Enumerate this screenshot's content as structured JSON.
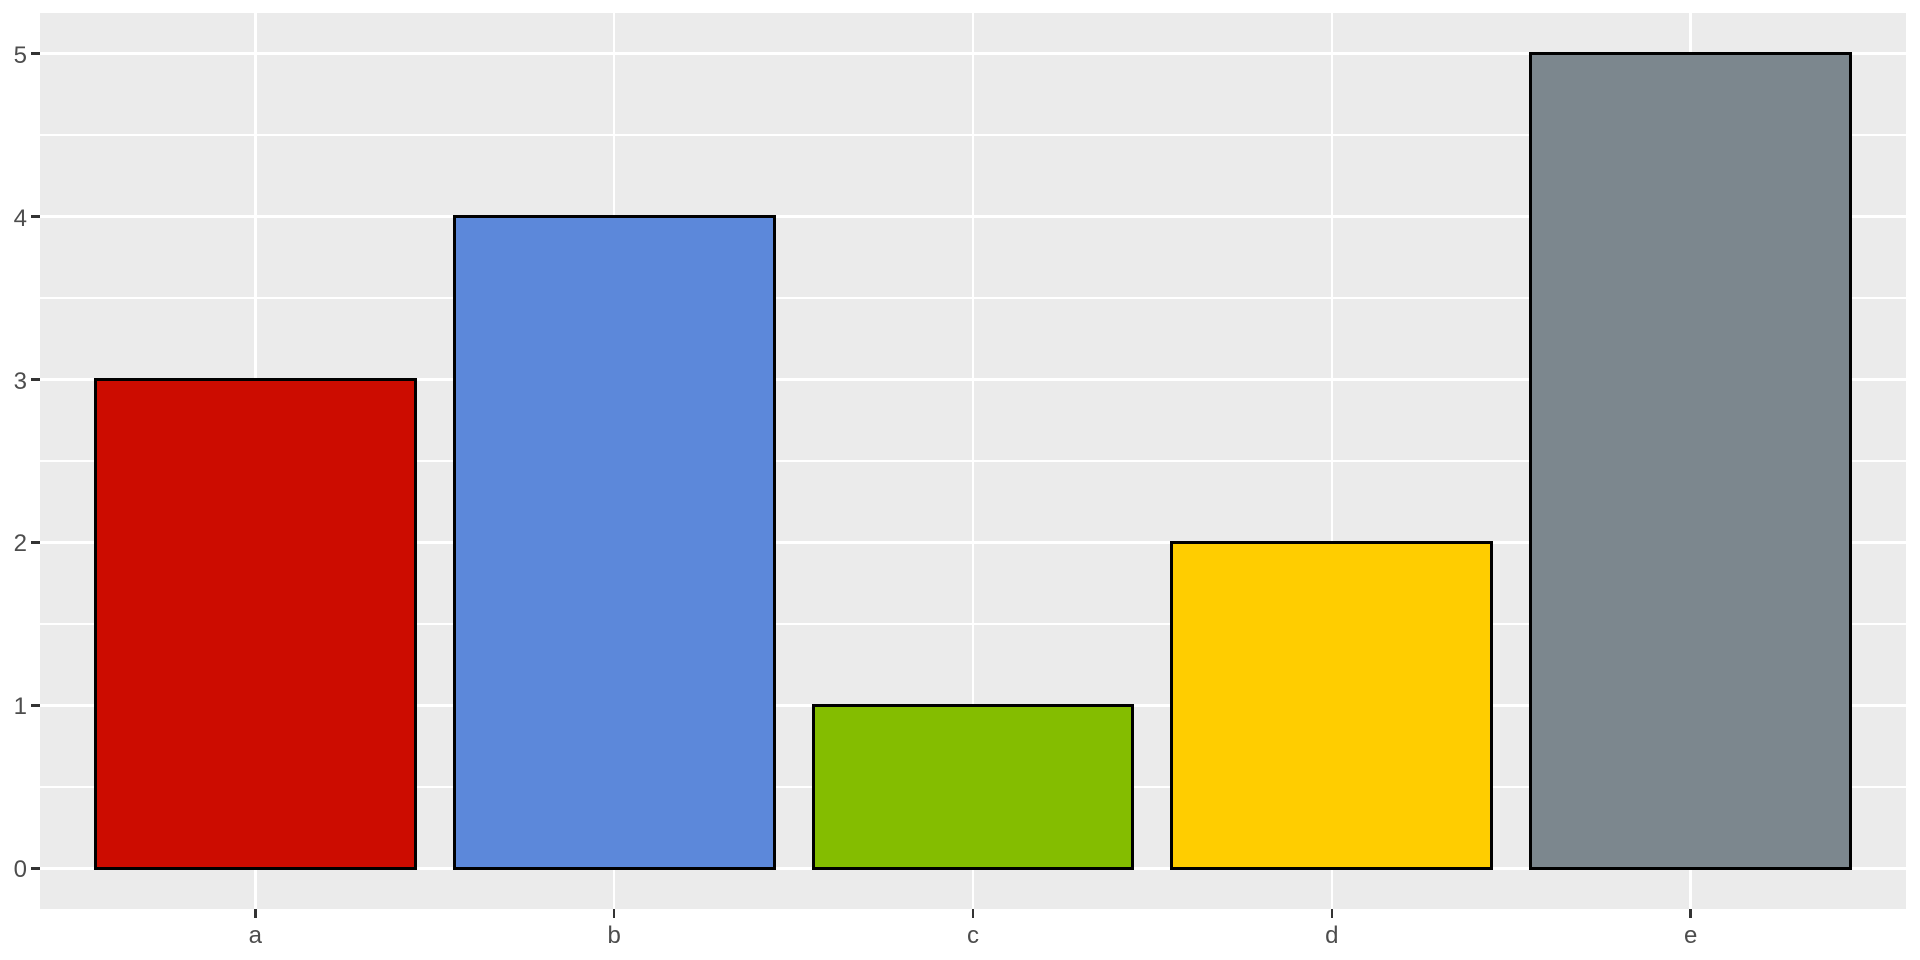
{
  "chart_data": {
    "type": "bar",
    "title": "",
    "xlabel": "",
    "ylabel": "",
    "categories": [
      "a",
      "b",
      "c",
      "d",
      "e"
    ],
    "values": [
      3,
      4,
      1,
      2,
      5
    ],
    "bar_colors": [
      "#CC0C00",
      "#5C88DA",
      "#84BD00",
      "#FFCD00",
      "#7C878E"
    ],
    "ylim": [
      0,
      5
    ],
    "yticks": [
      0,
      1,
      2,
      3,
      4,
      5
    ],
    "ytick_labels": [
      "0",
      "1",
      "2",
      "3",
      "4",
      "5"
    ],
    "yminor_ticks": [
      0.5,
      1.5,
      2.5,
      3.5,
      4.5
    ],
    "grid": "major-and-minor",
    "legend": "none",
    "bar_width_fraction": 0.9,
    "y_expansion_fraction": 0.05,
    "x_expansion_units": 0.6,
    "style": {
      "page_bg": "#FFFFFF",
      "panel_bg": "#EBEBEB",
      "grid_color": "#FFFFFF",
      "bar_outline_color": "#000000",
      "axis_text_color": "#4D4D4D",
      "tick_color": "#333333"
    }
  }
}
